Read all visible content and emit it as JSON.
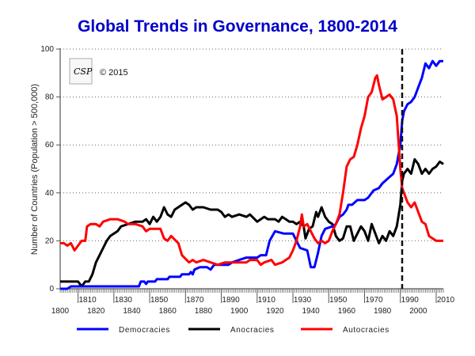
{
  "chart_data": {
    "type": "line",
    "title": "Global Trends in Governance, 1800-2014",
    "xlabel": "",
    "ylabel": "Number of Countries (Population > 500,000)",
    "xlim": [
      1800,
      2014
    ],
    "ylim": [
      0,
      100
    ],
    "grid": "horizontal-dotted",
    "x_major_ticks": [
      1800,
      1820,
      1840,
      1860,
      1880,
      1900,
      1920,
      1940,
      1960,
      1980,
      2000
    ],
    "x_minor_labeled_ticks": [
      1810,
      1830,
      1850,
      1870,
      1890,
      1910,
      1930,
      1950,
      1970,
      1990,
      2010
    ],
    "y_ticks": [
      0,
      20,
      40,
      60,
      80,
      100
    ],
    "reference_line": {
      "year": 1991,
      "style": "dashed"
    },
    "annotation": {
      "logo_text": "CSP",
      "copyright": "© 2015"
    },
    "legend_position": "bottom",
    "series": [
      {
        "name": "Democracies",
        "color": "#0000ff",
        "points": [
          [
            1800,
            0
          ],
          [
            1804,
            0
          ],
          [
            1806,
            1
          ],
          [
            1844,
            1
          ],
          [
            1845,
            3
          ],
          [
            1847,
            3
          ],
          [
            1848,
            2
          ],
          [
            1849,
            3
          ],
          [
            1853,
            3
          ],
          [
            1854,
            4
          ],
          [
            1860,
            4
          ],
          [
            1861,
            5
          ],
          [
            1867,
            5
          ],
          [
            1868,
            6
          ],
          [
            1872,
            6
          ],
          [
            1873,
            7
          ],
          [
            1874,
            6
          ],
          [
            1875,
            8
          ],
          [
            1878,
            9
          ],
          [
            1882,
            9
          ],
          [
            1884,
            8
          ],
          [
            1886,
            10
          ],
          [
            1894,
            10
          ],
          [
            1896,
            11
          ],
          [
            1900,
            12
          ],
          [
            1904,
            13
          ],
          [
            1910,
            13
          ],
          [
            1912,
            14
          ],
          [
            1915,
            14
          ],
          [
            1917,
            20
          ],
          [
            1920,
            24
          ],
          [
            1925,
            23
          ],
          [
            1930,
            23
          ],
          [
            1932,
            20
          ],
          [
            1934,
            17
          ],
          [
            1938,
            16
          ],
          [
            1940,
            9
          ],
          [
            1942,
            9
          ],
          [
            1944,
            15
          ],
          [
            1946,
            22
          ],
          [
            1948,
            25
          ],
          [
            1952,
            26
          ],
          [
            1954,
            27
          ],
          [
            1956,
            30
          ],
          [
            1958,
            31
          ],
          [
            1960,
            33
          ],
          [
            1961,
            35
          ],
          [
            1963,
            35
          ],
          [
            1966,
            37
          ],
          [
            1970,
            37
          ],
          [
            1972,
            38
          ],
          [
            1975,
            41
          ],
          [
            1978,
            42
          ],
          [
            1980,
            44
          ],
          [
            1983,
            46
          ],
          [
            1986,
            48
          ],
          [
            1988,
            52
          ],
          [
            1990,
            60
          ],
          [
            1991,
            70
          ],
          [
            1992,
            74
          ],
          [
            1994,
            77
          ],
          [
            1996,
            78
          ],
          [
            1998,
            80
          ],
          [
            2000,
            84
          ],
          [
            2002,
            88
          ],
          [
            2004,
            94
          ],
          [
            2006,
            92
          ],
          [
            2008,
            95
          ],
          [
            2010,
            93
          ],
          [
            2012,
            95
          ],
          [
            2014,
            95
          ]
        ]
      },
      {
        "name": "Anocracies",
        "color": "#000000",
        "points": [
          [
            1800,
            3
          ],
          [
            1810,
            3
          ],
          [
            1812,
            1
          ],
          [
            1814,
            3
          ],
          [
            1816,
            3
          ],
          [
            1818,
            6
          ],
          [
            1820,
            11
          ],
          [
            1822,
            14
          ],
          [
            1824,
            17
          ],
          [
            1826,
            20
          ],
          [
            1828,
            22
          ],
          [
            1830,
            23
          ],
          [
            1832,
            24
          ],
          [
            1834,
            26
          ],
          [
            1838,
            27
          ],
          [
            1842,
            28
          ],
          [
            1846,
            28
          ],
          [
            1848,
            29
          ],
          [
            1850,
            27
          ],
          [
            1852,
            30
          ],
          [
            1854,
            28
          ],
          [
            1856,
            30
          ],
          [
            1858,
            34
          ],
          [
            1860,
            31
          ],
          [
            1862,
            30
          ],
          [
            1864,
            33
          ],
          [
            1868,
            35
          ],
          [
            1870,
            36
          ],
          [
            1872,
            35
          ],
          [
            1874,
            33
          ],
          [
            1876,
            34
          ],
          [
            1880,
            34
          ],
          [
            1884,
            33
          ],
          [
            1888,
            33
          ],
          [
            1890,
            32
          ],
          [
            1892,
            30
          ],
          [
            1894,
            31
          ],
          [
            1896,
            30
          ],
          [
            1900,
            31
          ],
          [
            1904,
            30
          ],
          [
            1906,
            31
          ],
          [
            1910,
            28
          ],
          [
            1914,
            30
          ],
          [
            1916,
            29
          ],
          [
            1920,
            29
          ],
          [
            1922,
            28
          ],
          [
            1924,
            30
          ],
          [
            1926,
            29
          ],
          [
            1928,
            28
          ],
          [
            1930,
            28
          ],
          [
            1932,
            27
          ],
          [
            1934,
            28
          ],
          [
            1936,
            26
          ],
          [
            1937,
            21
          ],
          [
            1939,
            25
          ],
          [
            1941,
            26
          ],
          [
            1943,
            32
          ],
          [
            1944,
            30
          ],
          [
            1946,
            34
          ],
          [
            1948,
            30
          ],
          [
            1950,
            28
          ],
          [
            1952,
            27
          ],
          [
            1954,
            22
          ],
          [
            1956,
            20
          ],
          [
            1958,
            21
          ],
          [
            1960,
            26
          ],
          [
            1962,
            26
          ],
          [
            1964,
            20
          ],
          [
            1966,
            23
          ],
          [
            1968,
            26
          ],
          [
            1970,
            24
          ],
          [
            1972,
            20
          ],
          [
            1974,
            27
          ],
          [
            1976,
            23
          ],
          [
            1978,
            19
          ],
          [
            1980,
            22
          ],
          [
            1982,
            20
          ],
          [
            1984,
            24
          ],
          [
            1986,
            22
          ],
          [
            1988,
            26
          ],
          [
            1990,
            35
          ],
          [
            1991,
            45
          ],
          [
            1992,
            48
          ],
          [
            1994,
            50
          ],
          [
            1996,
            48
          ],
          [
            1998,
            54
          ],
          [
            2000,
            52
          ],
          [
            2002,
            48
          ],
          [
            2004,
            50
          ],
          [
            2006,
            48
          ],
          [
            2008,
            50
          ],
          [
            2010,
            51
          ],
          [
            2012,
            53
          ],
          [
            2014,
            52
          ]
        ]
      },
      {
        "name": "Autocracies",
        "color": "#ff0000",
        "points": [
          [
            1800,
            19
          ],
          [
            1802,
            19
          ],
          [
            1804,
            18
          ],
          [
            1806,
            19
          ],
          [
            1808,
            16
          ],
          [
            1810,
            18
          ],
          [
            1812,
            20
          ],
          [
            1814,
            20
          ],
          [
            1815,
            26
          ],
          [
            1817,
            27
          ],
          [
            1820,
            27
          ],
          [
            1822,
            26
          ],
          [
            1824,
            28
          ],
          [
            1828,
            29
          ],
          [
            1832,
            29
          ],
          [
            1836,
            28
          ],
          [
            1838,
            27
          ],
          [
            1842,
            27
          ],
          [
            1846,
            26
          ],
          [
            1848,
            24
          ],
          [
            1850,
            25
          ],
          [
            1853,
            25
          ],
          [
            1856,
            25
          ],
          [
            1858,
            21
          ],
          [
            1860,
            20
          ],
          [
            1862,
            22
          ],
          [
            1866,
            19
          ],
          [
            1868,
            14
          ],
          [
            1872,
            11
          ],
          [
            1874,
            12
          ],
          [
            1876,
            11
          ],
          [
            1880,
            12
          ],
          [
            1884,
            11
          ],
          [
            1888,
            10
          ],
          [
            1892,
            11
          ],
          [
            1896,
            11
          ],
          [
            1900,
            11
          ],
          [
            1904,
            11
          ],
          [
            1906,
            12
          ],
          [
            1910,
            12
          ],
          [
            1912,
            10
          ],
          [
            1914,
            11
          ],
          [
            1918,
            12
          ],
          [
            1920,
            10
          ],
          [
            1924,
            11
          ],
          [
            1926,
            12
          ],
          [
            1928,
            13
          ],
          [
            1930,
            16
          ],
          [
            1932,
            20
          ],
          [
            1934,
            26
          ],
          [
            1935,
            31
          ],
          [
            1936,
            26
          ],
          [
            1938,
            27
          ],
          [
            1940,
            24
          ],
          [
            1942,
            21
          ],
          [
            1944,
            19
          ],
          [
            1946,
            20
          ],
          [
            1948,
            19
          ],
          [
            1950,
            20
          ],
          [
            1952,
            24
          ],
          [
            1954,
            27
          ],
          [
            1956,
            31
          ],
          [
            1958,
            40
          ],
          [
            1960,
            51
          ],
          [
            1962,
            54
          ],
          [
            1964,
            55
          ],
          [
            1966,
            60
          ],
          [
            1968,
            67
          ],
          [
            1970,
            72
          ],
          [
            1972,
            80
          ],
          [
            1974,
            82
          ],
          [
            1976,
            88
          ],
          [
            1977,
            89
          ],
          [
            1978,
            85
          ],
          [
            1980,
            79
          ],
          [
            1982,
            80
          ],
          [
            1984,
            81
          ],
          [
            1986,
            79
          ],
          [
            1988,
            72
          ],
          [
            1990,
            50
          ],
          [
            1991,
            42
          ],
          [
            1992,
            40
          ],
          [
            1994,
            36
          ],
          [
            1996,
            34
          ],
          [
            1998,
            36
          ],
          [
            2000,
            32
          ],
          [
            2002,
            28
          ],
          [
            2004,
            27
          ],
          [
            2006,
            22
          ],
          [
            2008,
            21
          ],
          [
            2010,
            20
          ],
          [
            2014,
            20
          ]
        ]
      }
    ]
  },
  "legend": [
    {
      "label": "Democracies",
      "color": "#0000ff"
    },
    {
      "label": "Anocracies",
      "color": "#000000"
    },
    {
      "label": "Autocracies",
      "color": "#ff0000"
    }
  ]
}
